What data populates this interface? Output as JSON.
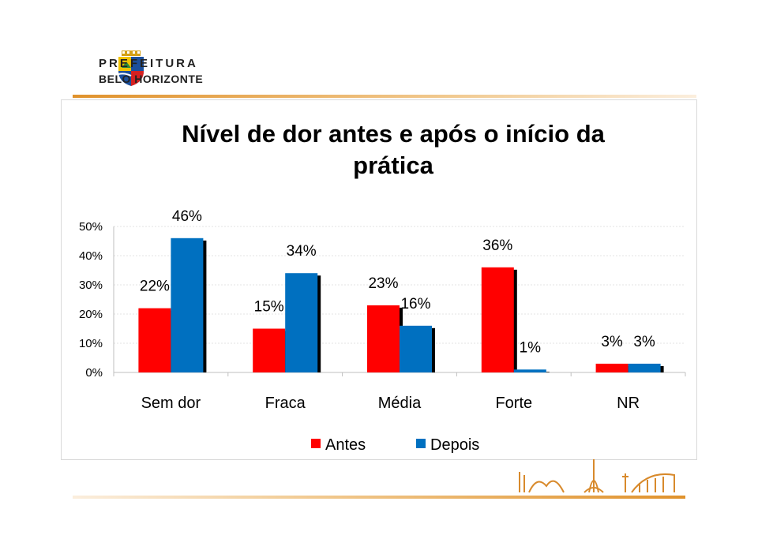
{
  "logo": {
    "line1": "PREFEITURA",
    "line2": "BELO HORIZONTE"
  },
  "chart_data": {
    "type": "bar",
    "title_lines": [
      "Nível de dor antes e após o início da",
      "prática"
    ],
    "categories": [
      "Sem dor",
      "Fraca",
      "Média",
      "Forte",
      "NR"
    ],
    "series": [
      {
        "name": "Antes",
        "color": "#ff0000",
        "values": [
          22,
          15,
          23,
          36,
          3
        ],
        "labels": [
          "22%",
          "15%",
          "23%",
          "36%",
          "3%"
        ]
      },
      {
        "name": "Depois",
        "color": "#0070c0",
        "values": [
          46,
          34,
          16,
          1,
          3
        ],
        "labels": [
          "46%",
          "34%",
          "16%",
          "1%",
          "3%"
        ]
      }
    ],
    "ylim": [
      0,
      50
    ],
    "yticks": [
      "0%",
      "10%",
      "20%",
      "30%",
      "40%",
      "50%"
    ],
    "grid": true,
    "legend": "bottom"
  },
  "colors": {
    "accent": "#e0922c"
  }
}
